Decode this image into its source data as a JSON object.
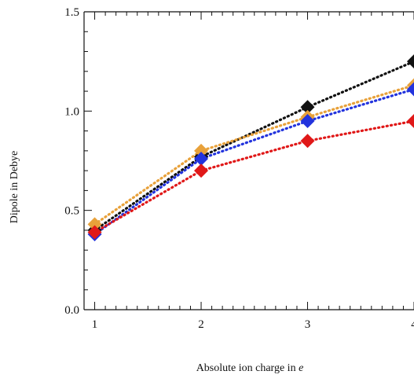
{
  "chart_data": {
    "type": "line",
    "title": "",
    "xlabel": "Absolute ion charge in",
    "xlabel_italic_symbol": "e",
    "ylabel": "Dipole in Debye",
    "x": [
      1,
      2,
      3,
      4
    ],
    "xlim": [
      0.9,
      4.0
    ],
    "ylim": [
      0.0,
      1.5
    ],
    "xticks": [
      "1",
      "2",
      "3",
      "4"
    ],
    "yticks": [
      "0.0",
      "0.5",
      "1.0",
      "1.5"
    ],
    "grid": false,
    "line_style": "dotted",
    "marker": "diamond",
    "series": [
      {
        "color": "#111111",
        "values": [
          0.4,
          0.77,
          1.02,
          1.25
        ]
      },
      {
        "color": "#e8a13a",
        "values": [
          0.43,
          0.8,
          0.97,
          1.13
        ]
      },
      {
        "color": "#2233dd",
        "values": [
          0.38,
          0.76,
          0.95,
          1.11
        ]
      },
      {
        "color": "#e01818",
        "values": [
          0.39,
          0.7,
          0.85,
          0.95
        ]
      }
    ]
  }
}
